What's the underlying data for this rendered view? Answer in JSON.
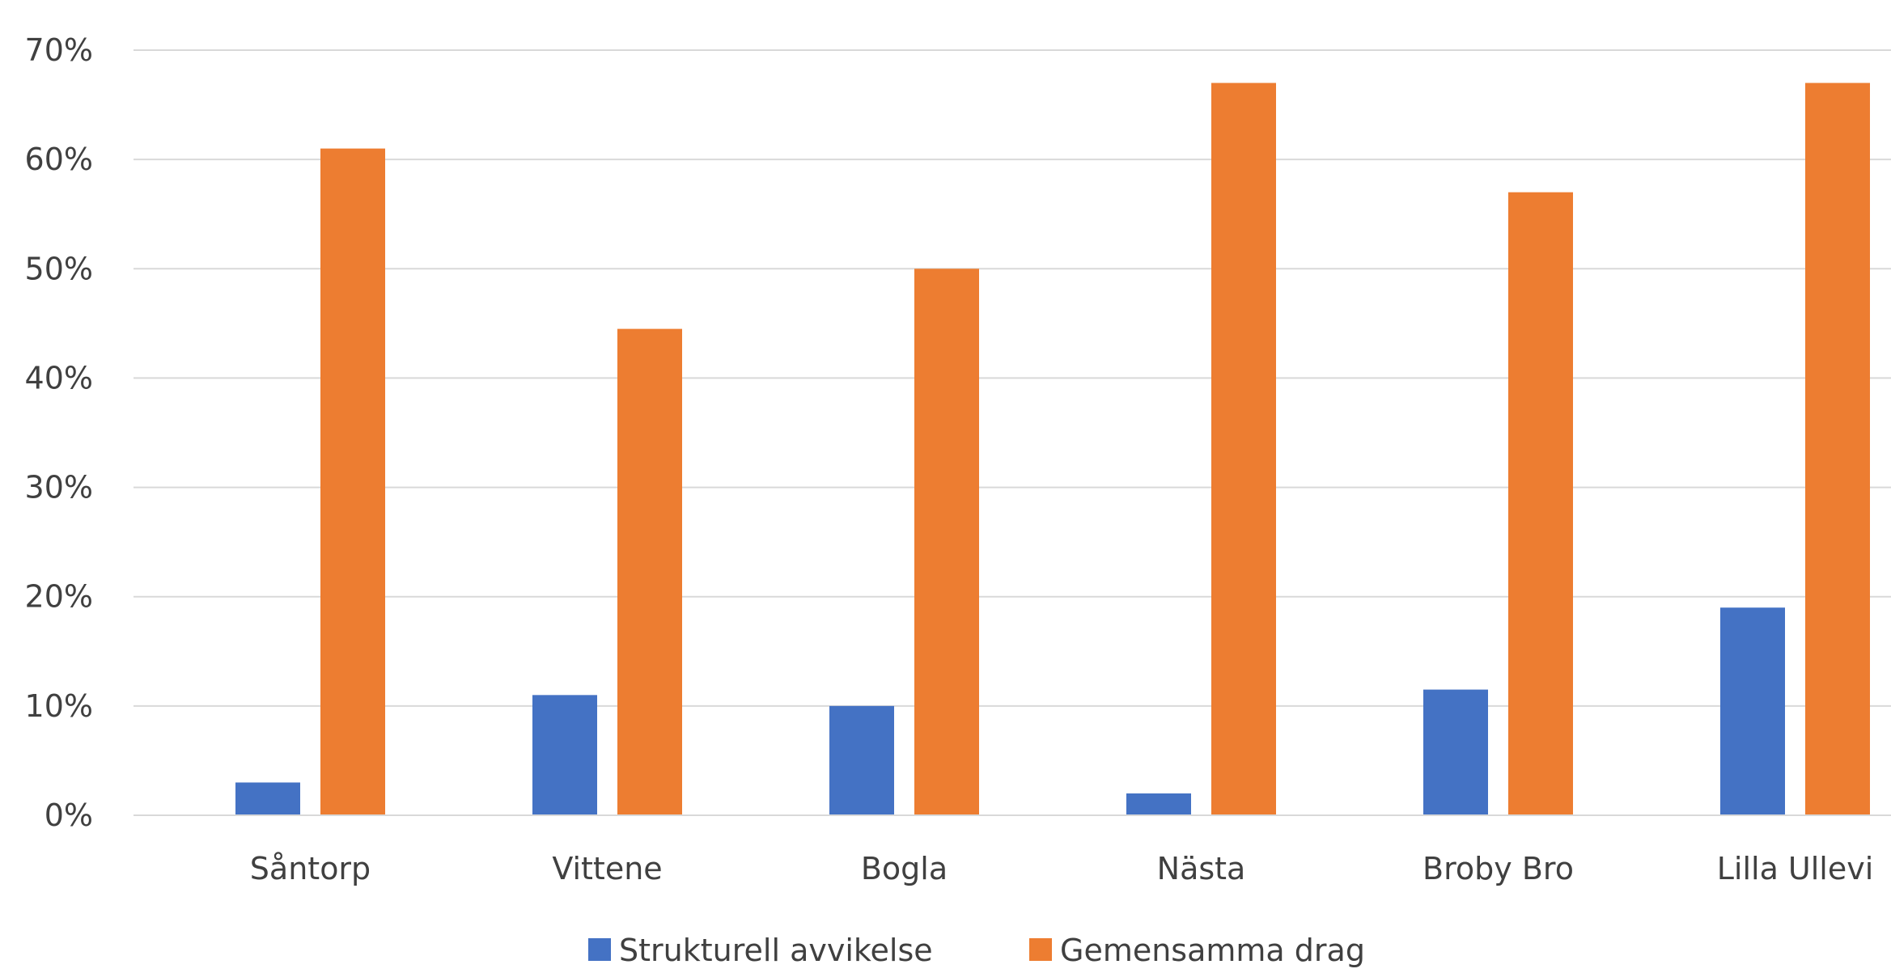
{
  "chart_data": {
    "type": "bar",
    "categories": [
      "Såntorp",
      "Vittene",
      "Bogla",
      "Nästa",
      "Broby Bro",
      "Lilla Ullevi"
    ],
    "series": [
      {
        "name": "Strukturell avvikelse",
        "color": "#4472C4",
        "values": [
          3,
          11,
          10,
          2,
          11.5,
          19
        ]
      },
      {
        "name": "Gemensamma drag",
        "color": "#ED7D31",
        "values": [
          61,
          44.5,
          50,
          67,
          57,
          67
        ]
      }
    ],
    "y_ticks": [
      "0%",
      "10%",
      "20%",
      "30%",
      "40%",
      "50%",
      "60%",
      "70%"
    ],
    "ylim": [
      0,
      70
    ],
    "grid": true,
    "legend_position": "bottom"
  }
}
